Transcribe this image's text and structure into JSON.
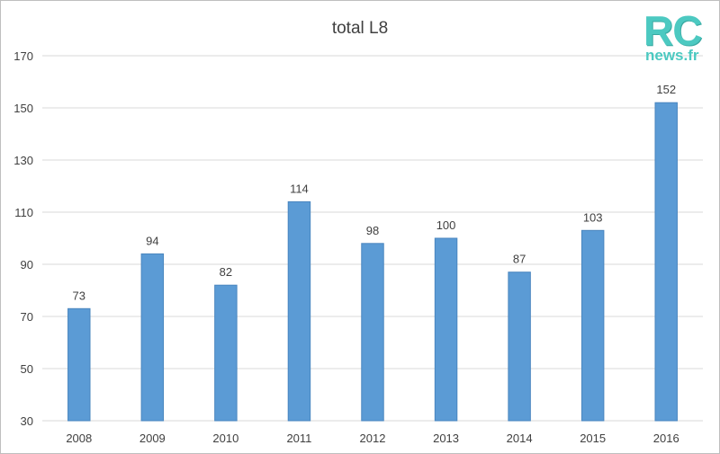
{
  "logo": {
    "brand": "RC",
    "site": "news.fr"
  },
  "chart_data": {
    "type": "bar",
    "title": "total L8",
    "xlabel": "",
    "ylabel": "",
    "categories": [
      "2008",
      "2009",
      "2010",
      "2011",
      "2012",
      "2013",
      "2014",
      "2015",
      "2016"
    ],
    "values": [
      73,
      94,
      82,
      114,
      98,
      100,
      87,
      103,
      152
    ],
    "ylim": [
      30,
      170
    ],
    "yticks": [
      30,
      50,
      70,
      90,
      110,
      130,
      150,
      170
    ],
    "grid": true,
    "data_labels": true,
    "bar_color": "#5b9bd5",
    "bar_edge_color": "#4a86bf",
    "grid_color": "#d9d9d9"
  }
}
